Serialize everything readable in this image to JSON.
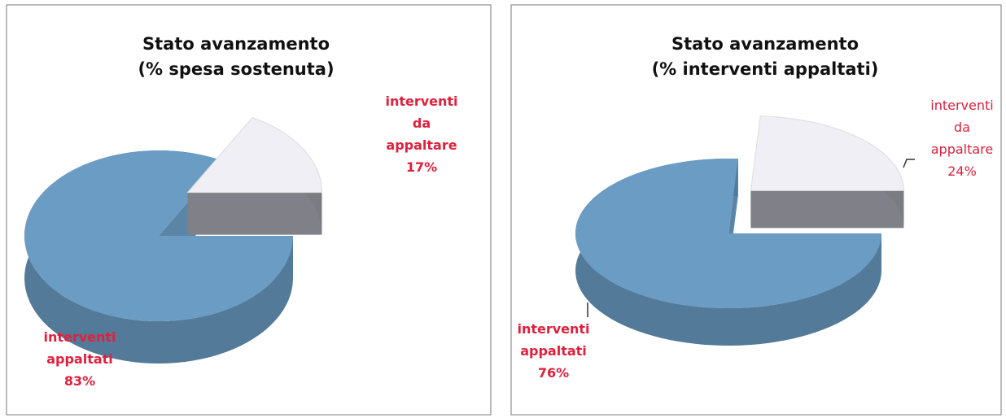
{
  "chart_data": [
    {
      "type": "pie3d",
      "title": [
        "Stato avanzamento",
        "(% spesa sostenuta)"
      ],
      "categories": [
        "interventi appaltati",
        "interventi da appaltare"
      ],
      "values": [
        83,
        17
      ],
      "value_labels": [
        "83%",
        "17%"
      ],
      "colors": [
        "#6a9cc4",
        "#efeff5"
      ]
    },
    {
      "type": "pie3d",
      "title": [
        "Stato avanzamento",
        "(% interventi appaltati)"
      ],
      "categories": [
        "interventi appaltati",
        "interventi da appaltare"
      ],
      "values": [
        76,
        24
      ],
      "value_labels": [
        "76%",
        "24%"
      ],
      "colors": [
        "#6a9cc4",
        "#efeff5"
      ]
    }
  ]
}
